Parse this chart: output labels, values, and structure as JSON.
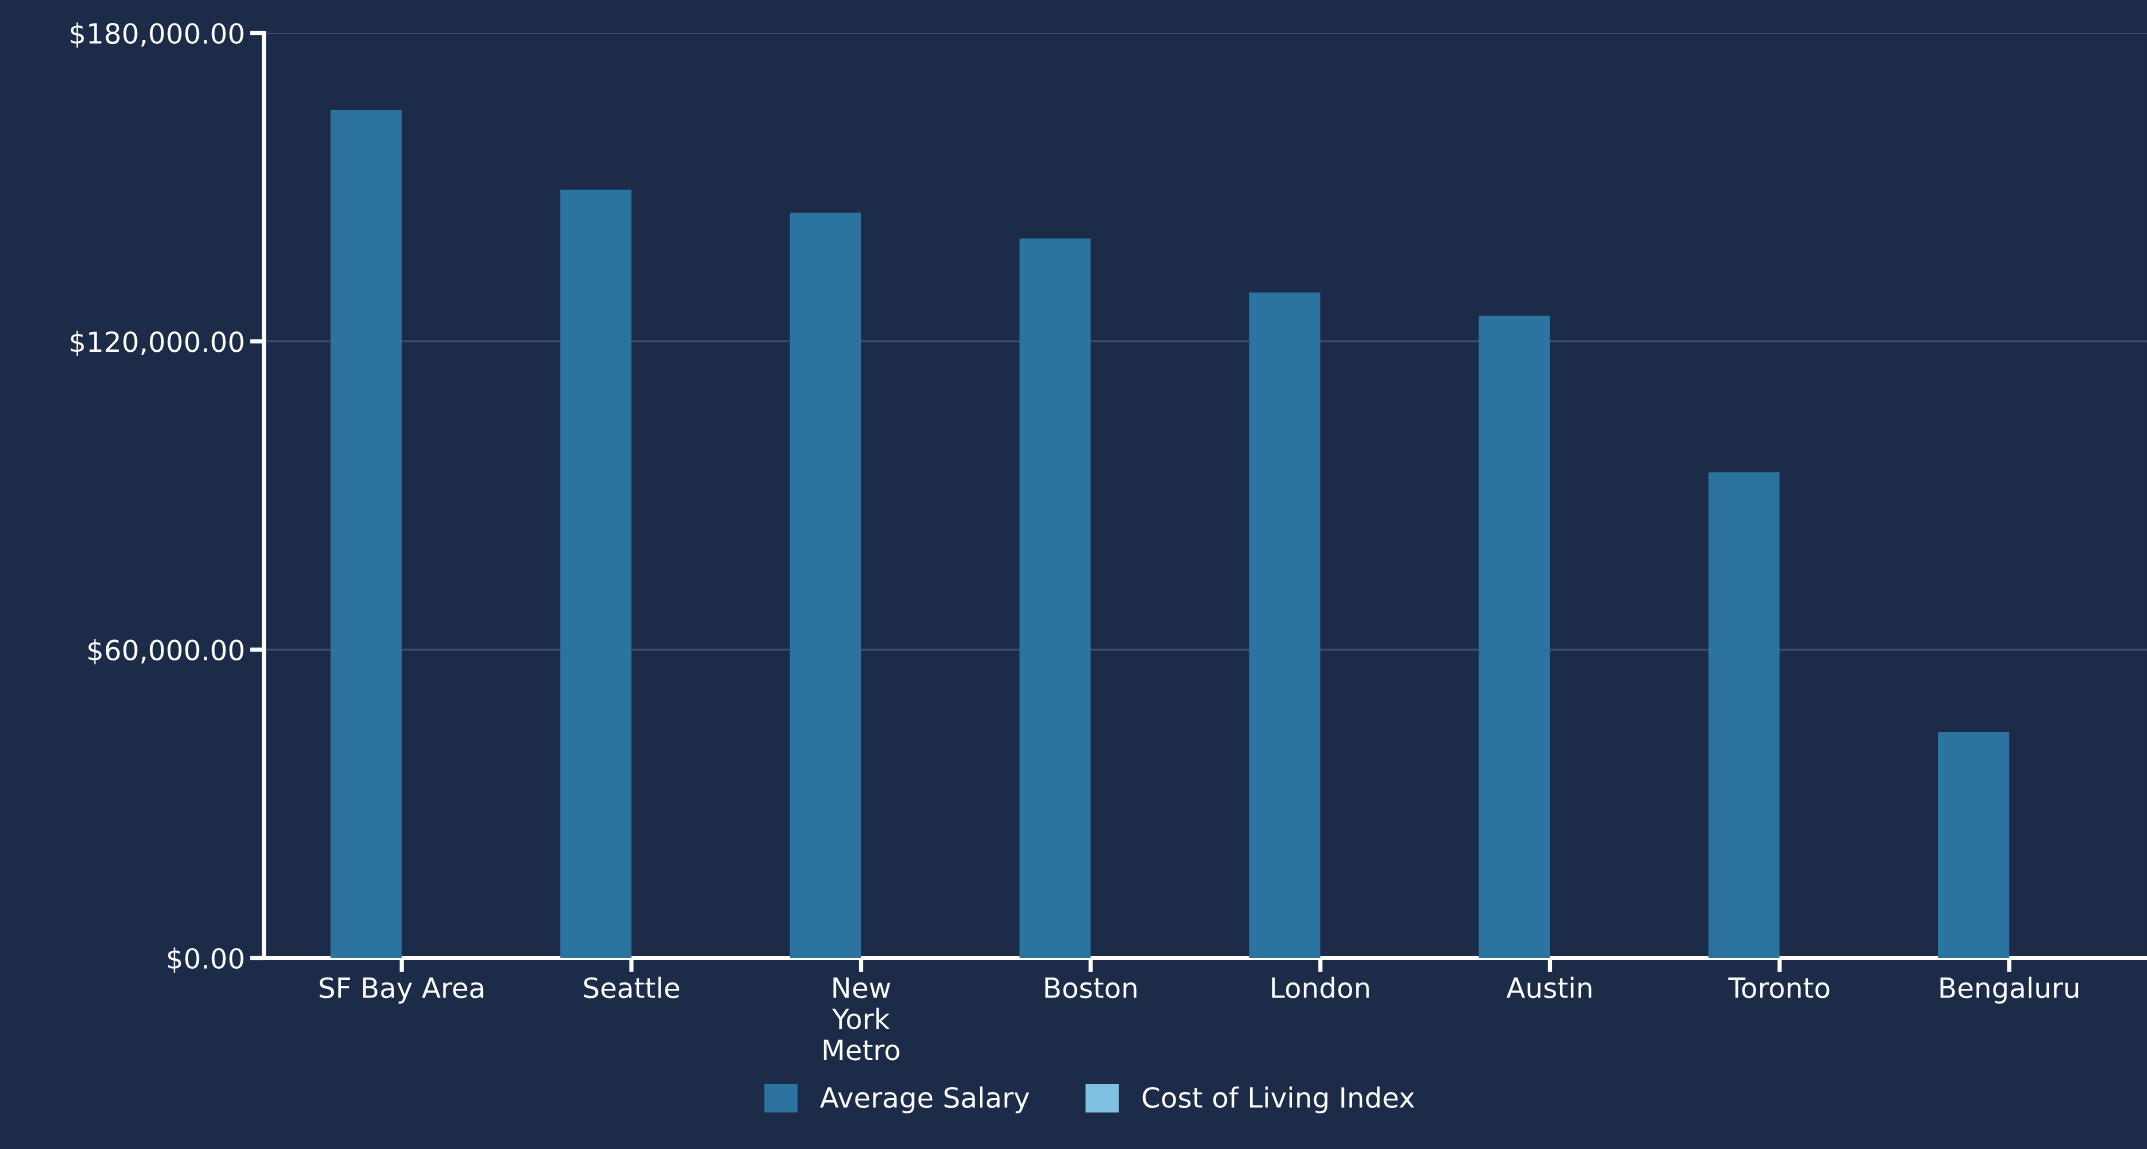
{
  "chart_data": {
    "type": "bar",
    "categories": [
      "SF Bay Area",
      "Seattle",
      "New York Metro",
      "Boston",
      "London",
      "Austin",
      "Toronto",
      "Bengaluru"
    ],
    "series": [
      {
        "name": "Average Salary",
        "color": "#2b74a0",
        "values": [
          165000,
          149500,
          145000,
          140000,
          129500,
          125000,
          94500,
          44000
        ]
      },
      {
        "name": "Cost of Living Index",
        "color": "#7fbfe0",
        "values": [
          null,
          null,
          null,
          null,
          null,
          null,
          null,
          null
        ]
      }
    ],
    "ylim": [
      0,
      180000
    ],
    "yticks": [
      {
        "value": 0,
        "label": "$0.00"
      },
      {
        "value": 60000,
        "label": "$60,000.00"
      },
      {
        "value": 120000,
        "label": "$120,000.00"
      },
      {
        "value": 180000,
        "label": "$180,000.00"
      }
    ],
    "grid": "y",
    "legend": "bottom"
  }
}
